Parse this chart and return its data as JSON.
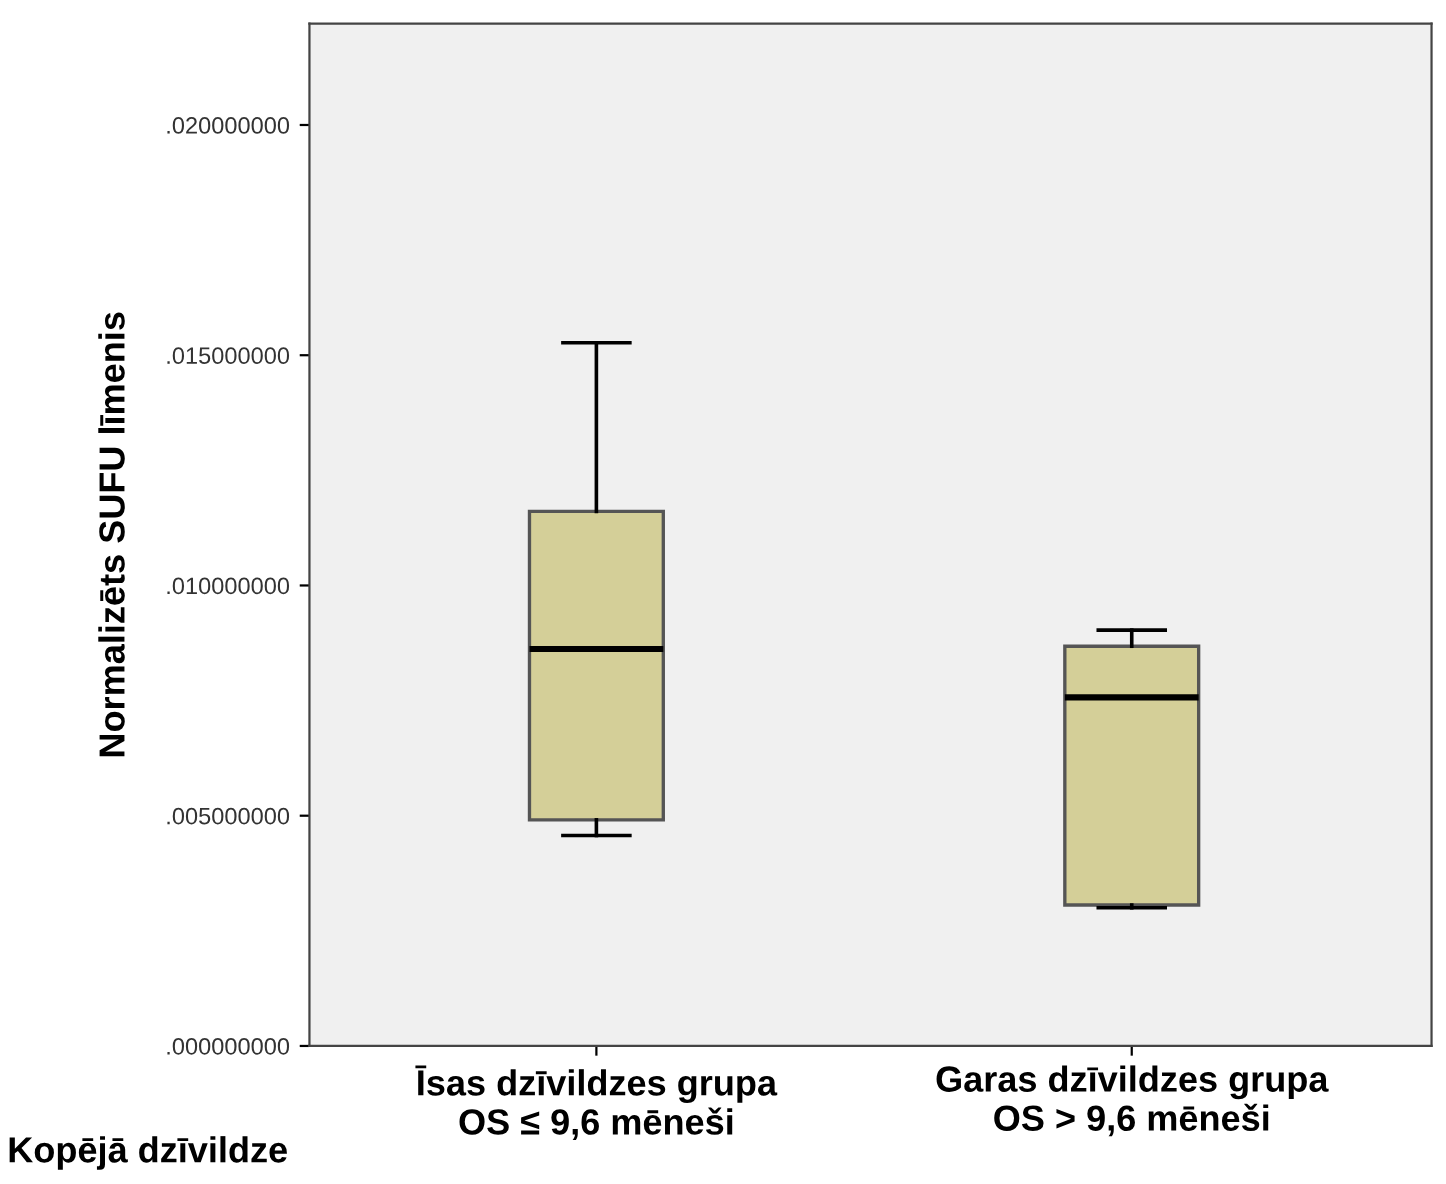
{
  "chart_data": {
    "type": "box",
    "xlabel": "Kopējā dzīvildze",
    "ylabel": "Normalizēts SUFU līmenis",
    "categories": [
      "Īsas dzīvildzes grupa\nOS ≤ 9,6 mēneši",
      "Garas dzīvildzes grupa\nOS > 9,6 mēneši"
    ],
    "series": [
      {
        "color": "#d4cf98",
        "boxes": [
          {
            "low": 0.00457,
            "q1": 0.00491,
            "median": 0.00862,
            "q3": 0.01161,
            "high": 0.01527
          },
          {
            "low": 0.003,
            "q1": 0.00306,
            "median": 0.00757,
            "q3": 0.00868,
            "high": 0.00903
          }
        ]
      }
    ],
    "ylim": [
      0,
      0.0222
    ],
    "yticks": [
      {
        "value": 0,
        "label": ".000000000"
      },
      {
        "value": 0.005,
        "label": ".005000000"
      },
      {
        "value": 0.01,
        "label": ".010000000"
      },
      {
        "value": 0.015,
        "label": ".015000000"
      },
      {
        "value": 0.02,
        "label": ".020000000"
      }
    ],
    "grid": false
  }
}
